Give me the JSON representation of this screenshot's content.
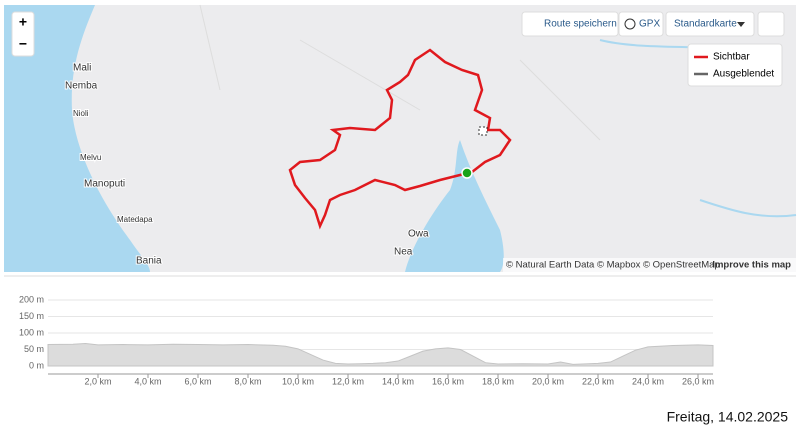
{
  "map": {
    "zoom_in": "+",
    "zoom_out": "−",
    "buttons": {
      "save_route": "Route speichern",
      "gpx": "GPX",
      "style": "Standardkarte"
    },
    "legend": [
      "Sichtbar",
      "Ausgeblendet"
    ],
    "places": [
      "Mali",
      "Nemba",
      "Nioli",
      "Melvu",
      "Manoputi",
      "Matedapa",
      "Bania",
      "Owa",
      "Nea"
    ],
    "attribution": "© Natural Earth Data © Mapbox © OpenStreetMap",
    "improve": "Improve this map"
  },
  "chart_data": {
    "type": "area",
    "x": [
      0,
      1,
      1.5,
      2,
      3,
      4,
      5,
      6,
      7,
      8,
      9,
      9.5,
      10,
      10.5,
      11,
      11.5,
      12,
      12.5,
      13,
      13.5,
      14,
      14.5,
      15,
      15.5,
      16,
      16.5,
      17,
      17.5,
      18,
      19,
      20,
      20.5,
      21,
      22,
      22.5,
      23,
      23.5,
      24,
      25,
      26,
      26.6
    ],
    "values": [
      65,
      66,
      68,
      64,
      65,
      64,
      66,
      65,
      64,
      65,
      63,
      60,
      52,
      35,
      18,
      8,
      6,
      7,
      8,
      10,
      15,
      30,
      45,
      52,
      55,
      50,
      30,
      10,
      6,
      7,
      6,
      12,
      5,
      8,
      12,
      30,
      48,
      58,
      62,
      64,
      62
    ],
    "color": "#dcdcdc",
    "xlim": [
      0,
      26.6
    ],
    "ylim": [
      0,
      200
    ],
    "xticks": [
      {
        "value": 2,
        "label": "2,0 km"
      },
      {
        "value": 4,
        "label": "4,0 km"
      },
      {
        "value": 6,
        "label": "6,0 km"
      },
      {
        "value": 8,
        "label": "8,0 km"
      },
      {
        "value": 10,
        "label": "10,0 km"
      },
      {
        "value": 12,
        "label": "12,0 km"
      },
      {
        "value": 14,
        "label": "14,0 km"
      },
      {
        "value": 16,
        "label": "16,0 km"
      },
      {
        "value": 18,
        "label": "18,0 km"
      },
      {
        "value": 20,
        "label": "20,0 km"
      },
      {
        "value": 22,
        "label": "22,0 km"
      },
      {
        "value": 24,
        "label": "24,0 km"
      },
      {
        "value": 26,
        "label": "26,0 km"
      }
    ],
    "yticks": [
      {
        "value": 0,
        "label": "0 m"
      },
      {
        "value": 50,
        "label": "50 m"
      },
      {
        "value": 100,
        "label": "100 m"
      },
      {
        "value": 150,
        "label": "150 m"
      },
      {
        "value": 200,
        "label": "200 m"
      }
    ],
    "grid": true
  },
  "footer": "Freitag, 14.02.2025"
}
